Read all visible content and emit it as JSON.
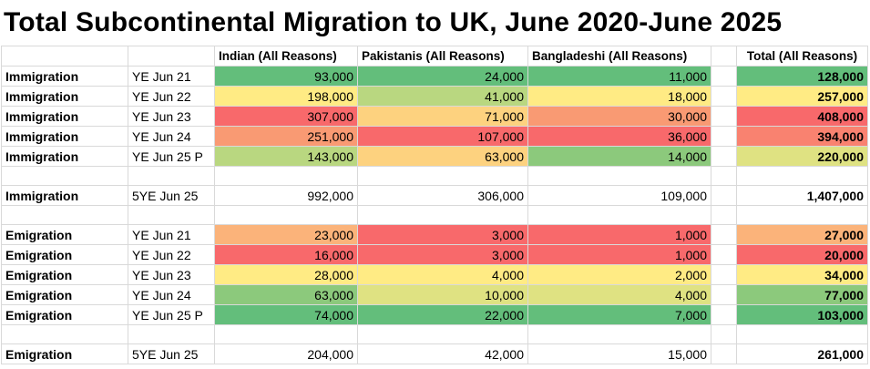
{
  "title": "Total Subcontinental Migration to UK, June 2020-June 2025",
  "headers": {
    "indian": "Indian (All Reasons)",
    "pakistani": "Pakistanis (All Reasons)",
    "bangladeshi": "Bangladeshi (All Reasons)",
    "total": "Total (All Reasons)"
  },
  "immigration": [
    {
      "label": "Immigration",
      "period": "YE Jun 21",
      "indian": "93,000",
      "pakistani": "24,000",
      "bangladeshi": "11,000",
      "total": "128,000"
    },
    {
      "label": "Immigration",
      "period": "YE Jun 22",
      "indian": "198,000",
      "pakistani": "41,000",
      "bangladeshi": "18,000",
      "total": "257,000"
    },
    {
      "label": "Immigration",
      "period": "YE Jun 23",
      "indian": "307,000",
      "pakistani": "71,000",
      "bangladeshi": "30,000",
      "total": "408,000"
    },
    {
      "label": "Immigration",
      "period": "YE Jun 24",
      "indian": "251,000",
      "pakistani": "107,000",
      "bangladeshi": "36,000",
      "total": "394,000"
    },
    {
      "label": "Immigration",
      "period": "YE Jun 25 P",
      "indian": "143,000",
      "pakistani": "63,000",
      "bangladeshi": "14,000",
      "total": "220,000"
    }
  ],
  "immigration_total": {
    "label": "Immigration",
    "period": "5YE Jun 25",
    "indian": "992,000",
    "pakistani": "306,000",
    "bangladeshi": "109,000",
    "total": "1,407,000"
  },
  "emigration": [
    {
      "label": "Emigration",
      "period": "YE Jun 21",
      "indian": "23,000",
      "pakistani": "3,000",
      "bangladeshi": "1,000",
      "total": "27,000"
    },
    {
      "label": "Emigration",
      "period": "YE Jun 22",
      "indian": "16,000",
      "pakistani": "3,000",
      "bangladeshi": "1,000",
      "total": "20,000"
    },
    {
      "label": "Emigration",
      "period": "YE Jun 23",
      "indian": "28,000",
      "pakistani": "4,000",
      "bangladeshi": "2,000",
      "total": "34,000"
    },
    {
      "label": "Emigration",
      "period": "YE Jun 24",
      "indian": "63,000",
      "pakistani": "10,000",
      "bangladeshi": "4,000",
      "total": "77,000"
    },
    {
      "label": "Emigration",
      "period": "YE Jun 25 P",
      "indian": "74,000",
      "pakistani": "22,000",
      "bangladeshi": "7,000",
      "total": "103,000"
    }
  ],
  "emigration_total": {
    "label": "Emigration",
    "period": "5YE Jun 25",
    "indian": "204,000",
    "pakistani": "42,000",
    "bangladeshi": "15,000",
    "total": "261,000"
  },
  "heat_colors": {
    "dark_green": "#63be7b",
    "green": "#8cc97c",
    "light_green": "#b9d780",
    "yellow_green": "#dfe282",
    "yellow": "#ffeb84",
    "light_orange": "#fdd27f",
    "orange": "#fbb37a",
    "dark_orange": "#f99a73",
    "light_red": "#f98270",
    "red": "#f8696b"
  }
}
